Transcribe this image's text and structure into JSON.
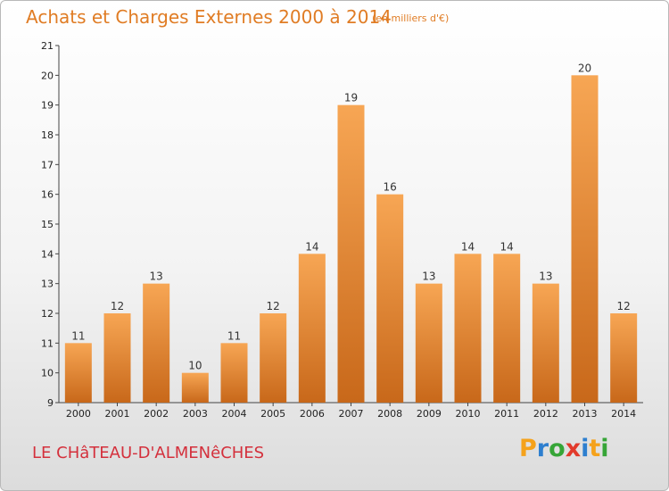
{
  "header": {
    "title": "Achats et Charges Externes 2000 à 2014",
    "unit_note": "(en milliers d'€)"
  },
  "footer": {
    "commune": "LE CHâTEAU-D'ALMENêCHES"
  },
  "logo": {
    "letters": [
      "P",
      "r",
      "o",
      "x",
      "i",
      "t",
      "i"
    ],
    "colors": [
      "#f5a21b",
      "#2d7fcf",
      "#36a537",
      "#e23a2b",
      "#2d7fcf",
      "#f5a21b",
      "#36a537"
    ]
  },
  "chart_data": {
    "type": "bar",
    "title": "Achats et Charges Externes 2000 à 2014",
    "subtitle": "(en milliers d'€)",
    "xlabel": "",
    "ylabel": "",
    "categories": [
      "2000",
      "2001",
      "2002",
      "2003",
      "2004",
      "2005",
      "2006",
      "2007",
      "2008",
      "2009",
      "2010",
      "2011",
      "2012",
      "2013",
      "2014"
    ],
    "values": [
      11,
      12,
      13,
      10,
      11,
      12,
      14,
      19,
      16,
      13,
      14,
      14,
      13,
      20,
      12
    ],
    "ylim": [
      9,
      21
    ],
    "yticks": [
      9,
      10,
      11,
      12,
      13,
      14,
      15,
      16,
      17,
      18,
      19,
      20,
      21
    ],
    "grid": false,
    "legend": "none",
    "bar_color_top": "#f7a654",
    "bar_color_bottom": "#c8681a"
  }
}
